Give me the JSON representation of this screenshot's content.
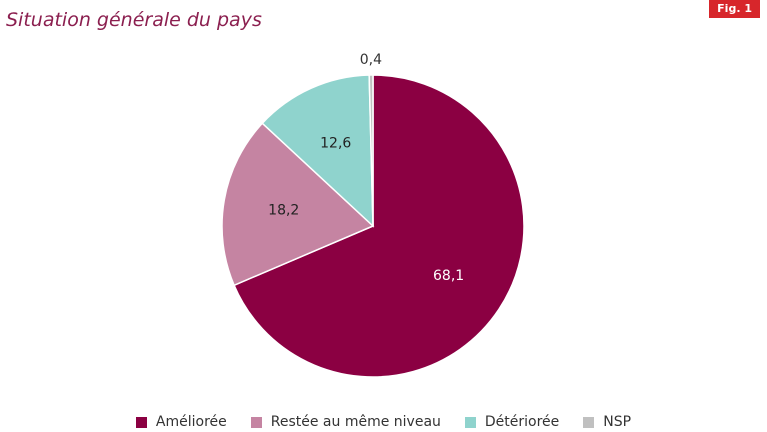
{
  "figure": {
    "title": "Situation générale du pays",
    "badge": "Fig. 1"
  },
  "chart_data": {
    "type": "pie",
    "title": "Situation générale du pays",
    "slices": [
      {
        "name": "Améliorée",
        "value": 68.1,
        "label": "68,1",
        "color": "#8b0042"
      },
      {
        "name": "Restée au même niveau",
        "value": 18.2,
        "label": "18,2",
        "color": "#c584a2"
      },
      {
        "name": "Détériorée",
        "value": 12.6,
        "label": "12,6",
        "color": "#8fd3cd"
      },
      {
        "name": "NSP",
        "value": 0.4,
        "label": "0,4",
        "color": "#c0c0c0"
      }
    ],
    "start": "12 o'clock",
    "direction": "clockwise",
    "legend_position": "bottom"
  }
}
